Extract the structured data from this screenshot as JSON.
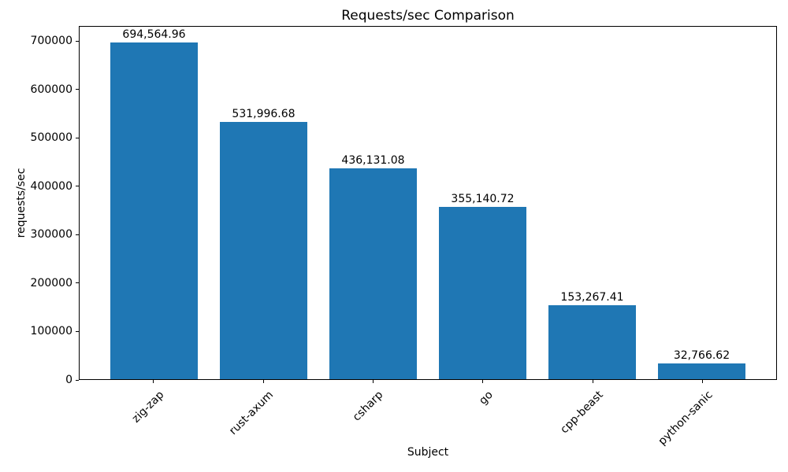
{
  "chart_data": {
    "type": "bar",
    "title": "Requests/sec Comparison",
    "xlabel": "Subject",
    "ylabel": "requests/sec",
    "categories": [
      "zig-zap",
      "rust-axum",
      "csharp",
      "go",
      "cpp-beast",
      "python-sanic"
    ],
    "values": [
      694564.96,
      531996.68,
      436131.08,
      355140.72,
      153267.41,
      32766.62
    ],
    "value_labels": [
      "694,564.96",
      "531,996.68",
      "436,131.08",
      "355,140.72",
      "153,267.41",
      "32,766.62"
    ],
    "yticks": [
      0,
      100000,
      200000,
      300000,
      400000,
      500000,
      600000,
      700000
    ],
    "ytick_labels": [
      "0",
      "100000",
      "200000",
      "300000",
      "400000",
      "500000",
      "600000",
      "700000"
    ],
    "ylim": [
      0,
      731000
    ],
    "bar_color": "#1f77b4",
    "grid": false,
    "legend": null,
    "xtick_rotation_deg": 45
  }
}
